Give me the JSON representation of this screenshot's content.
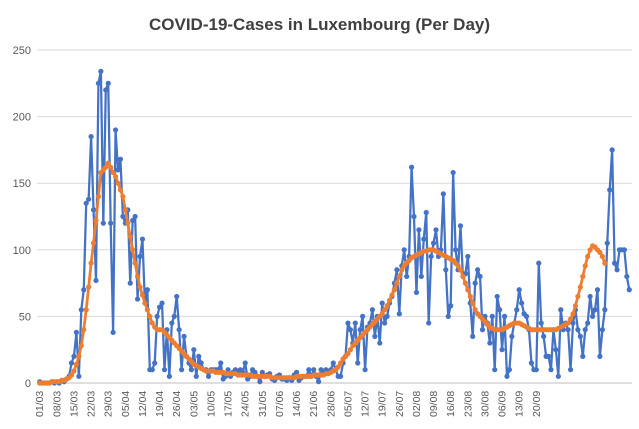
{
  "chart_data": {
    "type": "line",
    "title": "COVID-19-Cases in Luxembourg (Per Day)",
    "xlabel": "",
    "ylabel": "",
    "ylim": [
      0,
      250
    ],
    "yticks": [
      0,
      50,
      100,
      150,
      200,
      250
    ],
    "grid": "horizontal",
    "legend": "none",
    "x_start_label": "01/03",
    "x_tick_labels": [
      "01/03",
      "08/03",
      "15/03",
      "22/03",
      "29/03",
      "05/04",
      "12/04",
      "19/04",
      "26/04",
      "03/05",
      "10/05",
      "17/05",
      "24/05",
      "31/05",
      "07/06",
      "14/06",
      "21/06",
      "28/06",
      "05/07",
      "12/07",
      "19/07",
      "26/07",
      "02/08",
      "09/08",
      "16/08",
      "23/08",
      "30/08",
      "06/09",
      "13/09",
      "20/09"
    ],
    "series": [
      {
        "color": "#4472c4",
        "marker": "circle",
        "values": [
          1,
          0,
          0,
          0,
          0,
          1,
          0,
          1,
          0,
          2,
          1,
          3,
          5,
          15,
          20,
          38,
          5,
          55,
          70,
          135,
          138,
          185,
          130,
          77,
          225,
          234,
          120,
          220,
          225,
          120,
          38,
          190,
          160,
          168,
          125,
          120,
          130,
          75,
          122,
          125,
          63,
          95,
          108,
          60,
          70,
          10,
          10,
          15,
          50,
          57,
          60,
          10,
          40,
          5,
          45,
          50,
          65,
          40,
          10,
          35,
          20,
          15,
          10,
          25,
          5,
          20,
          15,
          10,
          10,
          5,
          10,
          10,
          10,
          10,
          15,
          3,
          5,
          10,
          5,
          8,
          10,
          8,
          10,
          8,
          15,
          3,
          5,
          10,
          8,
          5,
          1,
          8,
          5,
          6,
          7,
          3,
          2,
          5,
          6,
          3,
          3,
          2,
          4,
          2,
          6,
          8,
          2,
          4,
          5,
          5,
          10,
          5,
          10,
          5,
          1,
          10,
          8,
          10,
          8,
          10,
          15,
          10,
          5,
          5,
          15,
          20,
          45,
          40,
          30,
          45,
          15,
          40,
          50,
          10,
          42,
          45,
          55,
          35,
          50,
          30,
          60,
          45,
          50,
          60,
          65,
          75,
          85,
          52,
          88,
          100,
          80,
          95,
          162,
          125,
          68,
          115,
          80,
          108,
          128,
          45,
          95,
          105,
          115,
          95,
          100,
          142,
          85,
          50,
          58,
          158,
          100,
          85,
          118,
          80,
          82,
          95,
          60,
          35,
          75,
          85,
          80,
          40,
          50,
          45,
          30,
          50,
          10,
          65,
          55,
          25,
          50,
          5,
          10,
          35,
          45,
          55,
          70,
          60,
          52,
          50,
          40,
          15,
          10,
          10,
          90,
          45,
          35,
          20,
          20,
          10,
          40,
          25,
          5,
          55,
          40,
          45,
          40,
          10,
          45,
          55,
          40,
          35,
          20,
          40,
          45,
          65,
          50,
          55,
          70,
          20,
          40,
          55,
          105,
          145,
          175,
          90,
          85,
          100,
          100,
          100,
          80,
          70
        ]
      },
      {
        "color": "#ed7d31",
        "marker": "circle",
        "values": [
          0,
          0,
          0,
          0,
          0,
          1,
          1,
          1,
          1,
          2,
          2,
          3,
          4,
          6,
          9,
          14,
          20,
          28,
          40,
          55,
          72,
          90,
          105,
          122,
          140,
          158,
          160,
          162,
          165,
          162,
          158,
          155,
          150,
          145,
          140,
          130,
          120,
          110,
          100,
          90,
          80,
          72,
          66,
          60,
          55,
          50,
          45,
          42,
          40,
          40,
          40,
          38,
          36,
          34,
          32,
          30,
          28,
          26,
          24,
          22,
          20,
          18,
          16,
          14,
          13,
          12,
          11,
          10,
          9,
          9,
          9,
          9,
          8,
          8,
          8,
          8,
          7,
          7,
          7,
          7,
          7,
          6,
          6,
          6,
          6,
          6,
          6,
          5,
          5,
          5,
          5,
          5,
          5,
          5,
          5,
          4,
          4,
          4,
          4,
          4,
          4,
          4,
          4,
          4,
          4,
          5,
          5,
          5,
          5,
          5,
          5,
          5,
          6,
          6,
          6,
          6,
          6,
          7,
          7,
          8,
          9,
          10,
          12,
          15,
          18,
          20,
          22,
          25,
          28,
          30,
          32,
          34,
          36,
          38,
          40,
          42,
          44,
          46,
          48,
          50,
          52,
          55,
          58,
          62,
          66,
          70,
          75,
          80,
          85,
          88,
          90,
          92,
          94,
          95,
          96,
          97,
          98,
          99,
          99,
          100,
          100,
          100,
          99,
          98,
          97,
          96,
          95,
          94,
          93,
          92,
          90,
          88,
          85,
          80,
          75,
          70,
          65,
          60,
          55,
          52,
          50,
          48,
          46,
          44,
          42,
          41,
          40,
          40,
          40,
          40,
          41,
          42,
          43,
          44,
          45,
          45,
          45,
          44,
          43,
          42,
          41,
          40,
          40,
          40,
          40,
          40,
          40,
          40,
          40,
          40,
          40,
          40,
          41,
          42,
          43,
          44,
          45,
          48,
          52,
          58,
          65,
          72,
          80,
          88,
          95,
          100,
          103,
          102,
          100,
          98,
          95,
          90
        ]
      }
    ]
  }
}
